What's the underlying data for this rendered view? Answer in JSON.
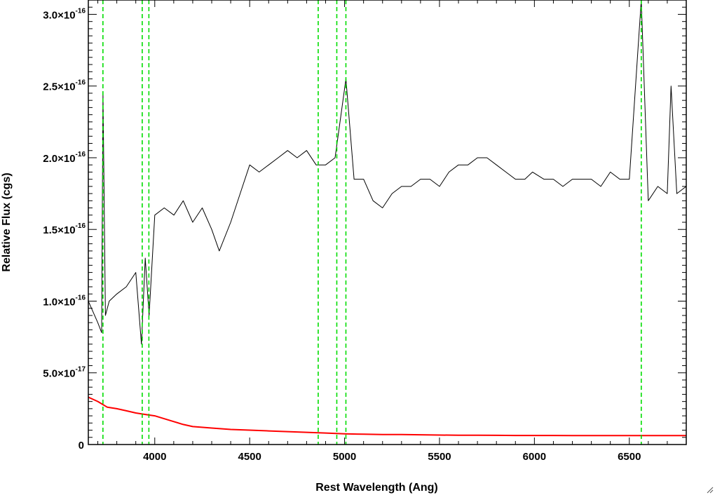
{
  "chart_data": {
    "type": "line",
    "title": "",
    "xlabel": "Rest Wavelength (Ang)",
    "ylabel": "Relative Flux (cgs)",
    "xlim": [
      3650,
      6800
    ],
    "ylim": [
      0,
      3.1e-16
    ],
    "x_ticks": [
      4000,
      4500,
      5000,
      5500,
      6000,
      6500
    ],
    "x_tick_labels": [
      "4000",
      "4500",
      "5000",
      "5500",
      "6000",
      "6500"
    ],
    "y_ticks": [
      {
        "value": 0,
        "mantissa": "0",
        "exponent": ""
      },
      {
        "value": 5e-17,
        "mantissa": "5.0×10",
        "exponent": "-17"
      },
      {
        "value": 1e-16,
        "mantissa": "1.0×10",
        "exponent": "-16"
      },
      {
        "value": 1.5e-16,
        "mantissa": "1.5×10",
        "exponent": "-16"
      },
      {
        "value": 2e-16,
        "mantissa": "2.0×10",
        "exponent": "-16"
      },
      {
        "value": 2.5e-16,
        "mantissa": "2.5×10",
        "exponent": "-16"
      },
      {
        "value": 3e-16,
        "mantissa": "3.0×10",
        "exponent": "-16"
      }
    ],
    "grid": false,
    "series": [
      {
        "color": "#000000",
        "style": "solid-thin",
        "x": [
          3650,
          3700,
          3720,
          3727,
          3740,
          3760,
          3800,
          3850,
          3900,
          3930,
          3950,
          3970,
          4000,
          4050,
          4101,
          4150,
          4200,
          4250,
          4300,
          4340,
          4400,
          4450,
          4500,
          4550,
          4600,
          4650,
          4700,
          4750,
          4800,
          4850,
          4900,
          4950,
          5007,
          5050,
          5100,
          5150,
          5200,
          5250,
          5300,
          5350,
          5400,
          5450,
          5500,
          5550,
          5600,
          5650,
          5700,
          5750,
          5800,
          5850,
          5900,
          5950,
          5990,
          6050,
          6100,
          6150,
          6200,
          6250,
          6300,
          6350,
          6400,
          6450,
          6500,
          6563,
          6600,
          6650,
          6700,
          6720,
          6750,
          6800
        ],
        "y": [
          1e-16,
          8.5e-17,
          7.8e-17,
          2.45e-16,
          9e-17,
          1e-16,
          1.05e-16,
          1.1e-16,
          1.2e-16,
          7e-17,
          1.3e-16,
          9e-17,
          1.6e-16,
          1.65e-16,
          1.6e-16,
          1.7e-16,
          1.55e-16,
          1.65e-16,
          1.5e-16,
          1.35e-16,
          1.55e-16,
          1.75e-16,
          1.95e-16,
          1.9e-16,
          1.95e-16,
          2e-16,
          2.05e-16,
          2e-16,
          2.05e-16,
          1.95e-16,
          1.95e-16,
          2e-16,
          2.55e-16,
          1.85e-16,
          1.85e-16,
          1.7e-16,
          1.65e-16,
          1.75e-16,
          1.8e-16,
          1.8e-16,
          1.85e-16,
          1.85e-16,
          1.8e-16,
          1.9e-16,
          1.95e-16,
          1.95e-16,
          2e-16,
          2e-16,
          1.95e-16,
          1.9e-16,
          1.85e-16,
          1.85e-16,
          1.9e-16,
          1.85e-16,
          1.85e-16,
          1.8e-16,
          1.85e-16,
          1.85e-16,
          1.85e-16,
          1.8e-16,
          1.9e-16,
          1.85e-16,
          1.85e-16,
          3.1e-16,
          1.7e-16,
          1.8e-16,
          1.75e-16,
          2.5e-16,
          1.75e-16,
          1.8e-16
        ]
      },
      {
        "color": "#ff0000",
        "style": "solid-thick",
        "x": [
          3650,
          3700,
          3750,
          3800,
          3850,
          3900,
          3950,
          4000,
          4050,
          4100,
          4150,
          4200,
          4300,
          4400,
          4500,
          4600,
          4700,
          4800,
          4900,
          5000,
          5100,
          5200,
          5300,
          5400,
          5500,
          5600,
          5700,
          5800,
          5900,
          6000,
          6100,
          6200,
          6300,
          6400,
          6500,
          6600,
          6700,
          6800
        ],
        "y": [
          3.3e-17,
          3e-17,
          2.6e-17,
          2.5e-17,
          2.35e-17,
          2.2e-17,
          2.1e-17,
          2e-17,
          1.8e-17,
          1.6e-17,
          1.4e-17,
          1.25e-17,
          1.15e-17,
          1.05e-17,
          1e-17,
          9.5e-18,
          9e-18,
          8.5e-18,
          8e-18,
          7.5e-18,
          7.2e-18,
          7e-18,
          7e-18,
          6.8e-18,
          6.6e-18,
          6.5e-18,
          6.5e-18,
          6.4e-18,
          6.3e-18,
          6.3e-18,
          6.3e-18,
          6.2e-18,
          6.2e-18,
          6.2e-18,
          6.2e-18,
          6.2e-18,
          6.2e-18,
          6.2e-18
        ]
      }
    ],
    "vertical_lines": {
      "color": "#00dd00",
      "style": "dashed",
      "x": [
        3727,
        3934,
        3969,
        4861,
        4959,
        5007,
        6563
      ]
    }
  }
}
